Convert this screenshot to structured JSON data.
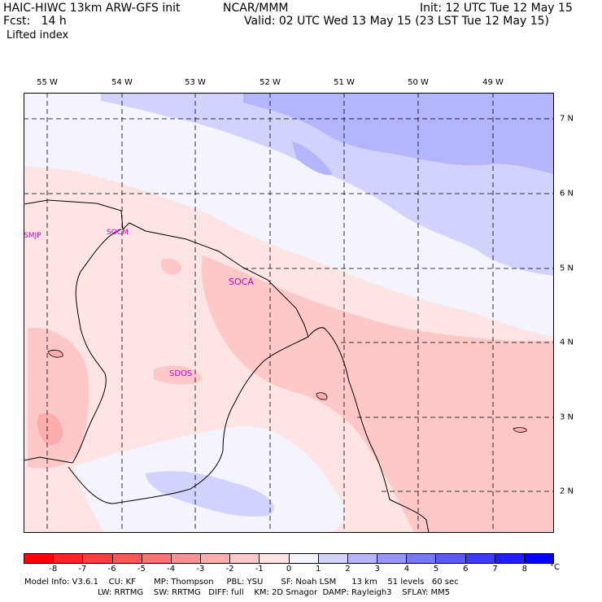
{
  "header": {
    "model": "HAIC-HIWC 13km ARW-GFS init",
    "org": "NCAR/MMM",
    "init": "Init: 12 UTC Tue 12 May 15",
    "fcst": "Fcst:   14 h",
    "valid": "Valid: 02 UTC Wed 13 May 15 (23 LST Tue 12 May 15)",
    "field": "Lifted index"
  },
  "map": {
    "lon_labels": [
      "55 W",
      "54 W",
      "53 W",
      "52 W",
      "51 W",
      "50 W",
      "49 W"
    ],
    "lat_labels": [
      "7 N",
      "6 N",
      "5 N",
      "4 N",
      "3 N",
      "2 N"
    ],
    "stations": [
      "SMJP",
      "SOCM",
      "SOCA",
      "SDOS"
    ]
  },
  "colorbar": {
    "ticks": [
      "-8",
      "-7",
      "-6",
      "-5",
      "-4",
      "-3",
      "-2",
      "-1",
      "0",
      "1",
      "2",
      "3",
      "4",
      "5",
      "6",
      "7",
      "8"
    ],
    "unit": "°C",
    "colors": [
      "#ff0000",
      "#ff2424",
      "#ff3e3e",
      "#ff5656",
      "#ff7373",
      "#ff9090",
      "#ffacac",
      "#ffc8c8",
      "#ffe4e4",
      "#f4f4ff",
      "#d2d2ff",
      "#b4b4ff",
      "#9696ff",
      "#7878ff",
      "#5a5aff",
      "#3c3cff",
      "#1e1eff",
      "#0000ff"
    ]
  },
  "footer": {
    "line1": "Model Info: V3.6.1    CU: KF       MP: Thompson     PBL: YSU       SF: Noah LSM      13 km    51 levels   60 sec",
    "line2": "LW: RRTMG    SW: RRTMG   DIFF: full    KM: 2D Smagor  DAMP: Rayleigh3    SFLAY: MM5"
  }
}
